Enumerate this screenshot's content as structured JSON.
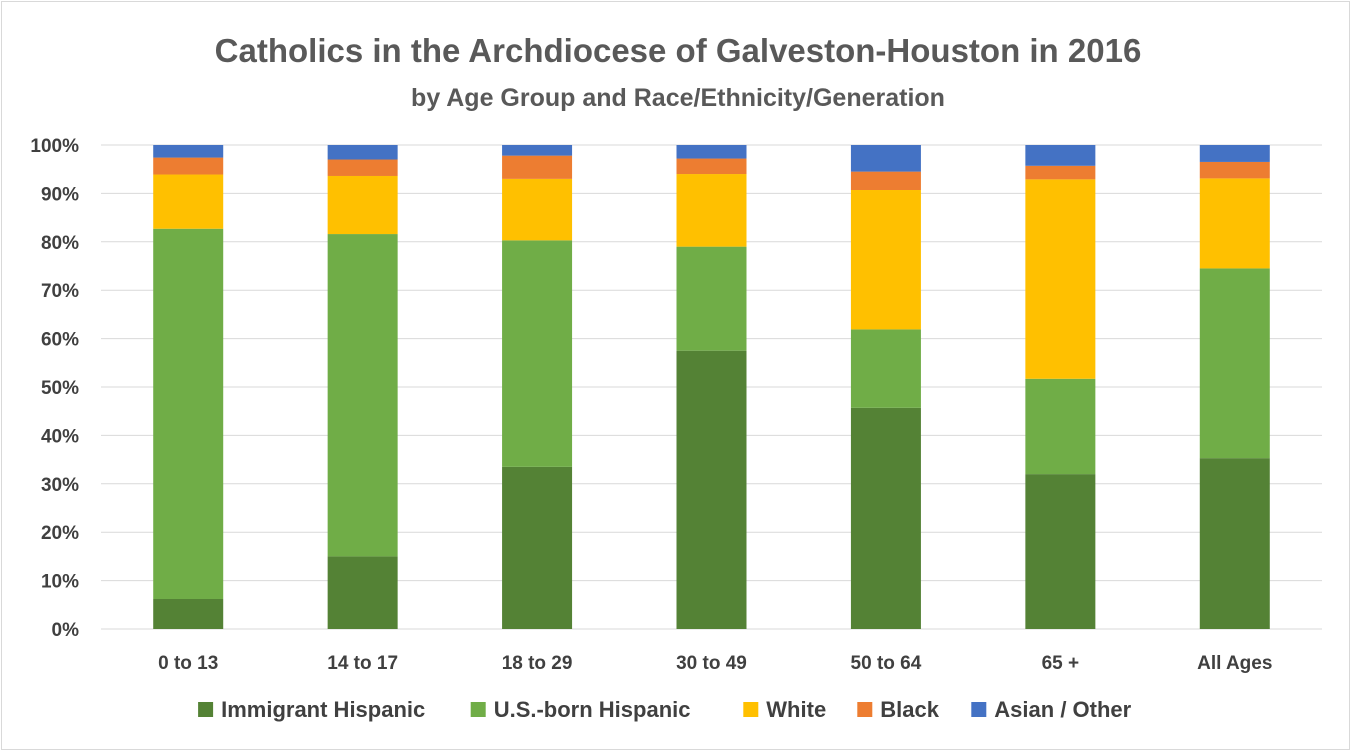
{
  "chart_data": {
    "type": "bar",
    "stacked": true,
    "title": "Catholics in the Archdiocese of Galveston-Houston in 2016",
    "subtitle": "by Age Group and Race/Ethnicity/Generation",
    "xlabel": "",
    "ylabel": "",
    "ylim": [
      0,
      100
    ],
    "y_tick_labels": [
      "0%",
      "10%",
      "20%",
      "30%",
      "40%",
      "50%",
      "60%",
      "70%",
      "80%",
      "90%",
      "100%"
    ],
    "grid": true,
    "legend_position": "bottom",
    "categories": [
      "0 to 13",
      "14 to 17",
      "18 to 29",
      "30 to 49",
      "50 to 64",
      "65 +",
      "All Ages"
    ],
    "series": [
      {
        "name": "Immigrant Hispanic",
        "color": "#548235",
        "values": [
          6.2,
          15.0,
          33.5,
          57.5,
          45.7,
          32.0,
          35.3
        ]
      },
      {
        "name": "U.S.-born Hispanic",
        "color": "#70ad47",
        "values": [
          76.5,
          66.6,
          46.8,
          21.5,
          16.2,
          19.7,
          39.2
        ]
      },
      {
        "name": "White",
        "color": "#ffc000",
        "values": [
          11.2,
          12.0,
          12.7,
          15.0,
          28.8,
          41.2,
          18.6
        ]
      },
      {
        "name": "Black",
        "color": "#ed7d31",
        "values": [
          3.5,
          3.4,
          4.8,
          3.2,
          3.8,
          2.8,
          3.4
        ]
      },
      {
        "name": "Asian / Other",
        "color": "#4472c4",
        "values": [
          2.6,
          3.0,
          2.2,
          2.8,
          5.5,
          4.3,
          3.5
        ]
      }
    ]
  }
}
